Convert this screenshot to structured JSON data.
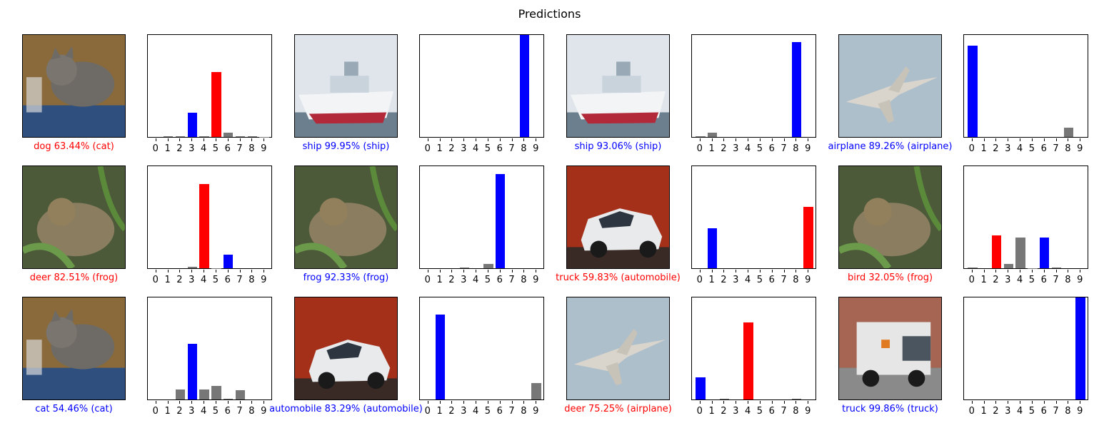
{
  "title": "Predictions",
  "colors": {
    "correct": "#0000ff",
    "wrong": "#ff0000",
    "other": "#777777"
  },
  "class_ticks": [
    "0",
    "1",
    "2",
    "3",
    "4",
    "5",
    "6",
    "7",
    "8",
    "9"
  ],
  "panels": [
    {
      "caption": "dog 63.44% (cat)",
      "correct": false,
      "image": "cat-photo",
      "true_label": 3,
      "pred_label": 5,
      "probs": [
        0.0,
        0.005,
        0.01,
        0.24,
        0.005,
        0.634,
        0.04,
        0.005,
        0.005,
        0.003
      ]
    },
    {
      "caption": "ship 99.95% (ship)",
      "correct": true,
      "image": "ship-photo",
      "true_label": 8,
      "pred_label": 8,
      "probs": [
        0,
        0,
        0,
        0,
        0,
        0,
        0,
        0,
        0.9995,
        0
      ]
    },
    {
      "caption": "ship 93.06% (ship)",
      "correct": true,
      "image": "ship-photo",
      "true_label": 8,
      "pred_label": 8,
      "probs": [
        0.005,
        0.045,
        0,
        0,
        0,
        0,
        0,
        0,
        0.9306,
        0
      ]
    },
    {
      "caption": "airplane 89.26% (airplane)",
      "correct": true,
      "image": "airplane-photo",
      "true_label": 0,
      "pred_label": 0,
      "probs": [
        0.8926,
        0,
        0,
        0,
        0,
        0,
        0,
        0,
        0.09,
        0
      ]
    },
    {
      "caption": "deer 82.51% (frog)",
      "correct": false,
      "image": "frog-photo",
      "true_label": 6,
      "pred_label": 4,
      "probs": [
        0,
        0,
        0,
        0.015,
        0.8251,
        0.003,
        0.13,
        0,
        0,
        0
      ]
    },
    {
      "caption": "frog 92.33% (frog)",
      "correct": true,
      "image": "frog-photo",
      "true_label": 6,
      "pred_label": 6,
      "probs": [
        0,
        0,
        0,
        0.01,
        0,
        0.04,
        0.9233,
        0,
        0,
        0
      ]
    },
    {
      "caption": "truck 59.83% (automobile)",
      "correct": false,
      "image": "car-photo",
      "true_label": 1,
      "pred_label": 9,
      "probs": [
        0,
        0.39,
        0,
        0,
        0,
        0,
        0,
        0,
        0,
        0.5983
      ]
    },
    {
      "caption": "bird 32.05% (frog)",
      "correct": false,
      "image": "frog-photo",
      "true_label": 6,
      "pred_label": 2,
      "probs": [
        0.01,
        0,
        0.3205,
        0.045,
        0.3,
        0.003,
        0.3,
        0.005,
        0,
        0
      ]
    },
    {
      "caption": "cat 54.46% (cat)",
      "correct": true,
      "image": "cat-photo",
      "true_label": 3,
      "pred_label": 3,
      "probs": [
        0,
        0,
        0.1,
        0.5446,
        0.1,
        0.13,
        0.005,
        0.09,
        0,
        0
      ]
    },
    {
      "caption": "automobile 83.29% (automobile)",
      "correct": true,
      "image": "car-photo",
      "true_label": 1,
      "pred_label": 1,
      "probs": [
        0,
        0.8329,
        0,
        0,
        0,
        0,
        0,
        0,
        0,
        0.16
      ]
    },
    {
      "caption": "deer 75.25% (airplane)",
      "correct": false,
      "image": "airplane-photo",
      "true_label": 0,
      "pred_label": 4,
      "probs": [
        0.22,
        0,
        0.005,
        0,
        0.7525,
        0,
        0,
        0,
        0.005,
        0
      ]
    },
    {
      "caption": "truck 99.86% (truck)",
      "correct": true,
      "image": "truck-photo",
      "true_label": 9,
      "pred_label": 9,
      "probs": [
        0,
        0,
        0,
        0,
        0,
        0,
        0,
        0,
        0,
        0.9986
      ]
    }
  ]
}
